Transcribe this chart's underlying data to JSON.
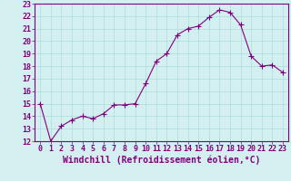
{
  "x": [
    0,
    1,
    2,
    3,
    4,
    5,
    6,
    7,
    8,
    9,
    10,
    11,
    12,
    13,
    14,
    15,
    16,
    17,
    18,
    19,
    20,
    21,
    22,
    23
  ],
  "y": [
    15.0,
    12.0,
    13.2,
    13.7,
    14.0,
    13.8,
    14.2,
    14.9,
    14.9,
    15.0,
    16.6,
    18.4,
    19.0,
    20.5,
    21.0,
    21.2,
    21.9,
    22.5,
    22.3,
    21.3,
    18.8,
    18.0,
    18.1,
    17.5
  ],
  "line_color": "#800080",
  "marker": "+",
  "marker_size": 4,
  "bg_color": "#d4efef",
  "grid_color": "#aadddd",
  "xlabel": "Windchill (Refroidissement éolien,°C)",
  "xlabel_color": "#800080",
  "ylim": [
    12,
    23
  ],
  "xlim": [
    -0.5,
    23.5
  ],
  "ytick_vals": [
    12,
    13,
    14,
    15,
    16,
    17,
    18,
    19,
    20,
    21,
    22,
    23
  ],
  "xtick_vals": [
    0,
    1,
    2,
    3,
    4,
    5,
    6,
    7,
    8,
    9,
    10,
    11,
    12,
    13,
    14,
    15,
    16,
    17,
    18,
    19,
    20,
    21,
    22,
    23
  ],
  "xtick_labels": [
    "0",
    "1",
    "2",
    "3",
    "4",
    "5",
    "6",
    "7",
    "8",
    "9",
    "10",
    "11",
    "12",
    "13",
    "14",
    "15",
    "16",
    "17",
    "18",
    "19",
    "20",
    "21",
    "22",
    "23"
  ],
  "ytick_labels": [
    "12",
    "13",
    "14",
    "15",
    "16",
    "17",
    "18",
    "19",
    "20",
    "21",
    "22",
    "23"
  ],
  "tick_color": "#800080",
  "font_size": 6,
  "xlabel_fontsize": 7,
  "lw": 0.8,
  "marker_lw": 0.8
}
